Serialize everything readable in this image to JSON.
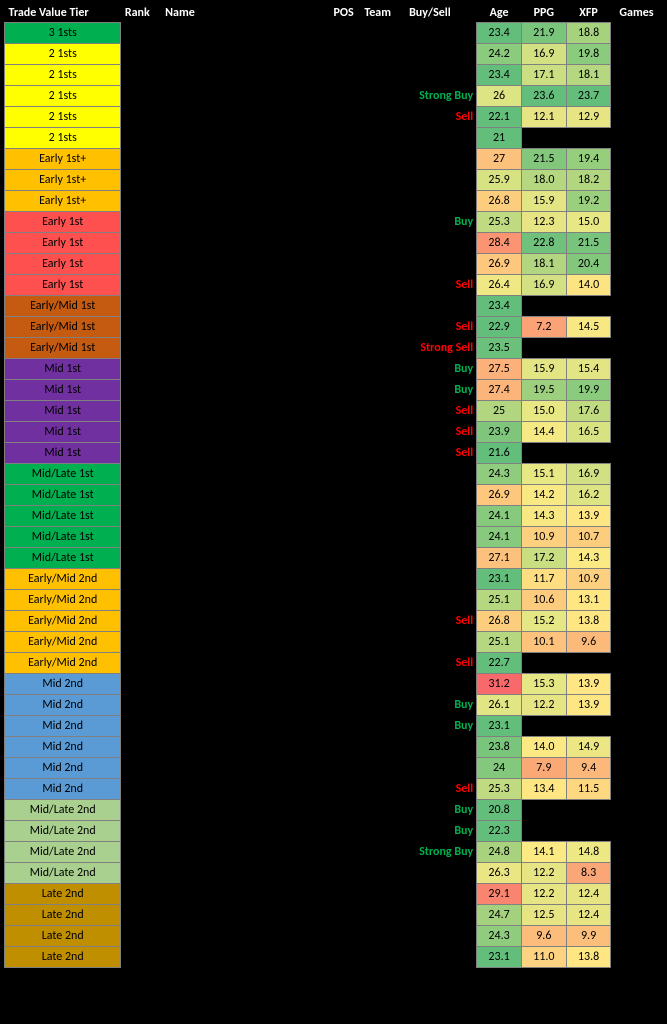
{
  "headers": {
    "tier": "Trade Value Tier",
    "rank": "Rank",
    "name": "Name",
    "pos": "POS",
    "team": "Team",
    "buysell": "Buy/Sell",
    "age": "Age",
    "ppg": "PPG",
    "xfp": "XFP",
    "games": "Games"
  },
  "buysell_colors": {
    "Strong Buy": "#00b050",
    "Buy": "#00b050",
    "Sell": "#ff0000",
    "Strong Sell": "#ff0000"
  },
  "rows": [
    {
      "tier": "3 1sts",
      "tier_bg": "#00b050",
      "buysell": "",
      "age": "23.4",
      "age_bg": "#63be7b",
      "ppg": "21.9",
      "ppg_bg": "#7ac57c",
      "xfp": "18.8",
      "xfp_bg": "#a6d27e"
    },
    {
      "tier": "2 1sts",
      "tier_bg": "#ffff00",
      "buysell": "",
      "age": "24.2",
      "age_bg": "#8bcb7d",
      "ppg": "16.9",
      "ppg_bg": "#d3e182",
      "xfp": "19.8",
      "xfp_bg": "#8bcb7d"
    },
    {
      "tier": "2 1sts",
      "tier_bg": "#ffff00",
      "buysell": "",
      "age": "23.4",
      "age_bg": "#63be7b",
      "ppg": "17.1",
      "ppg_bg": "#cbde81",
      "xfp": "18.1",
      "xfp_bg": "#b5d77f"
    },
    {
      "tier": "2 1sts",
      "tier_bg": "#ffff00",
      "buysell": "Strong Buy",
      "age": "26",
      "age_bg": "#dce483",
      "ppg": "23.6",
      "ppg_bg": "#63be7b",
      "xfp": "23.7",
      "xfp_bg": "#63be7b"
    },
    {
      "tier": "2 1sts",
      "tier_bg": "#ffff00",
      "buysell": "Sell",
      "age": "22.1",
      "age_bg": "#63be7b",
      "ppg": "12.1",
      "ppg_bg": "#e7e483",
      "xfp": "12.9",
      "xfp_bg": "#e7e483"
    },
    {
      "tier": "2 1sts",
      "tier_bg": "#ffff00",
      "buysell": "",
      "age": "21",
      "age_bg": "#63be7b",
      "ppg": "",
      "ppg_bg": "",
      "xfp": "",
      "xfp_bg": ""
    },
    {
      "tier": "Early 1st+",
      "tier_bg": "#ffc000",
      "buysell": "",
      "age": "27",
      "age_bg": "#fcc17c",
      "ppg": "21.5",
      "ppg_bg": "#82c77c",
      "xfp": "19.4",
      "xfp_bg": "#95ce7d"
    },
    {
      "tier": "Early 1st+",
      "tier_bg": "#ffc000",
      "buysell": "",
      "age": "25.9",
      "age_bg": "#d7e283",
      "ppg": "18.0",
      "ppg_bg": "#b5d77f",
      "xfp": "18.2",
      "xfp_bg": "#b2d67f"
    },
    {
      "tier": "Early 1st+",
      "tier_bg": "#ffc000",
      "buysell": "",
      "age": "26.8",
      "age_bg": "#fdcd7e",
      "ppg": "15.9",
      "ppg_bg": "#e3e584",
      "xfp": "19.2",
      "xfp_bg": "#9acf7d"
    },
    {
      "tier": "Early 1st",
      "tier_bg": "#ff5050",
      "buysell": "Buy",
      "age": "25.3",
      "age_bg": "#bfda80",
      "ppg": "12.3",
      "ppg_bg": "#e7e483",
      "xfp": "15.0",
      "xfp_bg": "#e7e784"
    },
    {
      "tier": "Early 1st",
      "tier_bg": "#ff5050",
      "buysell": "",
      "age": "28.4",
      "age_bg": "#fa9473",
      "ppg": "22.8",
      "ppg_bg": "#6fc17b",
      "xfp": "21.5",
      "xfp_bg": "#78c47c"
    },
    {
      "tier": "Early 1st",
      "tier_bg": "#ff5050",
      "buysell": "",
      "age": "26.9",
      "age_bg": "#fdc87d",
      "ppg": "18.1",
      "ppg_bg": "#b2d67f",
      "xfp": "20.4",
      "xfp_bg": "#82c77c"
    },
    {
      "tier": "Early 1st",
      "tier_bg": "#ff5050",
      "buysell": "Sell",
      "age": "26.4",
      "age_bg": "#f0e884",
      "ppg": "16.9",
      "ppg_bg": "#d3e182",
      "xfp": "14.0",
      "xfp_bg": "#fde483"
    },
    {
      "tier": "Early/Mid 1st",
      "tier_bg": "#c55a11",
      "buysell": "",
      "age": "23.4",
      "age_bg": "#63be7b",
      "ppg": "",
      "ppg_bg": "",
      "xfp": "",
      "xfp_bg": ""
    },
    {
      "tier": "Early/Mid 1st",
      "tier_bg": "#c55a11",
      "buysell": "Sell",
      "age": "22.9",
      "age_bg": "#63be7b",
      "ppg": "7.2",
      "ppg_bg": "#fba276",
      "xfp": "14.5",
      "xfp_bg": "#f7e884"
    },
    {
      "tier": "Early/Mid 1st",
      "tier_bg": "#c55a11",
      "buysell": "Strong Sell",
      "age": "23.5",
      "age_bg": "#6bc07b",
      "ppg": "",
      "ppg_bg": "",
      "xfp": "",
      "xfp_bg": ""
    },
    {
      "tier": "Mid 1st",
      "tier_bg": "#7030a0",
      "buysell": "Buy",
      "age": "27.5",
      "age_bg": "#fbb179",
      "ppg": "15.9",
      "ppg_bg": "#e3e584",
      "xfp": "15.4",
      "xfp_bg": "#e3e584"
    },
    {
      "tier": "Mid 1st",
      "tier_bg": "#7030a0",
      "buysell": "Buy",
      "age": "27.4",
      "age_bg": "#fbb479",
      "ppg": "19.5",
      "ppg_bg": "#9dd07e",
      "xfp": "19.9",
      "xfp_bg": "#8bcb7d"
    },
    {
      "tier": "Mid 1st",
      "tier_bg": "#7030a0",
      "buysell": "Sell",
      "age": "25",
      "age_bg": "#b2d67f",
      "ppg": "15.0",
      "ppg_bg": "#e7e784",
      "xfp": "17.6",
      "xfp_bg": "#c0da80"
    },
    {
      "tier": "Mid 1st",
      "tier_bg": "#7030a0",
      "buysell": "Sell",
      "age": "23.9",
      "age_bg": "#7fc67c",
      "ppg": "14.4",
      "ppg_bg": "#f5e984",
      "xfp": "16.5",
      "xfp_bg": "#d7e283"
    },
    {
      "tier": "Mid 1st",
      "tier_bg": "#7030a0",
      "buysell": "Sell",
      "age": "21.6",
      "age_bg": "#63be7b",
      "ppg": "",
      "ppg_bg": "",
      "xfp": "",
      "xfp_bg": ""
    },
    {
      "tier": "Mid/Late 1st",
      "tier_bg": "#00b050",
      "buysell": "",
      "age": "24.3",
      "age_bg": "#90cc7d",
      "ppg": "15.1",
      "ppg_bg": "#e7e784",
      "xfp": "16.9",
      "xfp_bg": "#d0e082"
    },
    {
      "tier": "Mid/Late 1st",
      "tier_bg": "#00b050",
      "buysell": "",
      "age": "26.9",
      "age_bg": "#fdc87d",
      "ppg": "14.2",
      "ppg_bg": "#f9e984",
      "xfp": "16.2",
      "xfp_bg": "#dce483"
    },
    {
      "tier": "Mid/Late 1st",
      "tier_bg": "#00b050",
      "buysell": "",
      "age": "24.1",
      "age_bg": "#87ca7d",
      "ppg": "14.3",
      "ppg_bg": "#f7e884",
      "xfp": "13.9",
      "xfp_bg": "#fde683"
    },
    {
      "tier": "Mid/Late 1st",
      "tier_bg": "#00b050",
      "buysell": "",
      "age": "24.1",
      "age_bg": "#87ca7d",
      "ppg": "10.9",
      "ppg_bg": "#fdd07f",
      "xfp": "10.7",
      "xfp_bg": "#fdcd7e"
    },
    {
      "tier": "Mid/Late 1st",
      "tier_bg": "#00b050",
      "buysell": "",
      "age": "27.1",
      "age_bg": "#fcc17c",
      "ppg": "17.2",
      "ppg_bg": "#c8de81",
      "xfp": "14.3",
      "xfp_bg": "#fbe984"
    },
    {
      "tier": "Early/Mid 2nd",
      "tier_bg": "#ffc000",
      "buysell": "",
      "age": "23.1",
      "age_bg": "#63be7b",
      "ppg": "11.7",
      "ppg_bg": "#fede81",
      "xfp": "10.9",
      "xfp_bg": "#fdd07f"
    },
    {
      "tier": "Early/Mid 2nd",
      "tier_bg": "#ffc000",
      "buysell": "",
      "age": "25.1",
      "age_bg": "#b5d77f",
      "ppg": "10.6",
      "ppg_bg": "#fdcb7e",
      "xfp": "13.1",
      "xfp_bg": "#fee783"
    },
    {
      "tier": "Early/Mid 2nd",
      "tier_bg": "#ffc000",
      "buysell": "Sell",
      "age": "26.8",
      "age_bg": "#fdcd7e",
      "ppg": "15.2",
      "ppg_bg": "#e5e684",
      "xfp": "13.8",
      "xfp_bg": "#fee683"
    },
    {
      "tier": "Early/Mid 2nd",
      "tier_bg": "#ffc000",
      "buysell": "",
      "age": "25.1",
      "age_bg": "#b5d77f",
      "ppg": "10.1",
      "ppg_bg": "#fdc37c",
      "xfp": "9.6",
      "xfp_bg": "#fcba7a"
    },
    {
      "tier": "Early/Mid 2nd",
      "tier_bg": "#ffc000",
      "buysell": "Sell",
      "age": "22.7",
      "age_bg": "#63be7b",
      "ppg": "",
      "ppg_bg": "",
      "xfp": "",
      "xfp_bg": ""
    },
    {
      "tier": "Mid 2nd",
      "tier_bg": "#5b9bd5",
      "buysell": "",
      "age": "31.2",
      "age_bg": "#f8696b",
      "ppg": "15.3",
      "ppg_bg": "#e5e684",
      "xfp": "13.9",
      "xfp_bg": "#fde683"
    },
    {
      "tier": "Mid 2nd",
      "tier_bg": "#5b9bd5",
      "buysell": "Buy",
      "age": "26.1",
      "age_bg": "#e1e584",
      "ppg": "12.2",
      "ppg_bg": "#e7e483",
      "xfp": "13.9",
      "xfp_bg": "#fde683"
    },
    {
      "tier": "Mid 2nd",
      "tier_bg": "#5b9bd5",
      "buysell": "Buy",
      "age": "23.1",
      "age_bg": "#63be7b",
      "ppg": "",
      "ppg_bg": "",
      "xfp": "",
      "xfp_bg": ""
    },
    {
      "tier": "Mid 2nd",
      "tier_bg": "#5b9bd5",
      "buysell": "",
      "age": "23.8",
      "age_bg": "#7ac57c",
      "ppg": "14.0",
      "ppg_bg": "#fde984",
      "xfp": "14.9",
      "xfp_bg": "#ece784"
    },
    {
      "tier": "Mid 2nd",
      "tier_bg": "#5b9bd5",
      "buysell": "",
      "age": "24",
      "age_bg": "#83c87c",
      "ppg": "7.9",
      "ppg_bg": "#fba877",
      "xfp": "9.4",
      "xfp_bg": "#fcb77a"
    },
    {
      "tier": "Mid 2nd",
      "tier_bg": "#5b9bd5",
      "buysell": "Sell",
      "age": "25.3",
      "age_bg": "#bfda80",
      "ppg": "13.4",
      "ppg_bg": "#fee783",
      "xfp": "11.5",
      "xfp_bg": "#fed881"
    },
    {
      "tier": "Mid/Late 2nd",
      "tier_bg": "#a9d08e",
      "buysell": "Buy",
      "age": "20.8",
      "age_bg": "#63be7b",
      "ppg": "",
      "ppg_bg": "",
      "xfp": "",
      "xfp_bg": ""
    },
    {
      "tier": "Mid/Late 2nd",
      "tier_bg": "#a9d08e",
      "buysell": "Buy",
      "age": "22.3",
      "age_bg": "#63be7b",
      "ppg": "",
      "ppg_bg": "",
      "xfp": "",
      "xfp_bg": ""
    },
    {
      "tier": "Mid/Late 2nd",
      "tier_bg": "#a9d08e",
      "buysell": "Strong Buy",
      "age": "24.8",
      "age_bg": "#a8d27e",
      "ppg": "14.1",
      "ppg_bg": "#fbe984",
      "xfp": "14.8",
      "xfp_bg": "#eee884"
    },
    {
      "tier": "Mid/Late 2nd",
      "tier_bg": "#a9d08e",
      "buysell": "",
      "age": "26.3",
      "age_bg": "#e9e683",
      "ppg": "12.2",
      "ppg_bg": "#e7e483",
      "xfp": "8.3",
      "xfp_bg": "#fba677"
    },
    {
      "tier": "Late 2nd",
      "tier_bg": "#bf8f00",
      "buysell": "",
      "age": "29.1",
      "age_bg": "#f98570",
      "ppg": "12.2",
      "ppg_bg": "#e7e483",
      "xfp": "12.4",
      "xfp_bg": "#e7e483"
    },
    {
      "tier": "Late 2nd",
      "tier_bg": "#bf8f00",
      "buysell": "",
      "age": "24.7",
      "age_bg": "#a3d17e",
      "ppg": "12.5",
      "ppg_bg": "#e7e483",
      "xfp": "12.4",
      "xfp_bg": "#e7e483"
    },
    {
      "tier": "Late 2nd",
      "tier_bg": "#bf8f00",
      "buysell": "",
      "age": "24.3",
      "age_bg": "#90cc7d",
      "ppg": "9.6",
      "ppg_bg": "#fcbc7b",
      "xfp": "9.9",
      "xfp_bg": "#fcbe7b"
    },
    {
      "tier": "Late 2nd",
      "tier_bg": "#bf8f00",
      "buysell": "",
      "age": "23.1",
      "age_bg": "#63be7b",
      "ppg": "11.0",
      "ppg_bg": "#fdd280",
      "xfp": "13.8",
      "xfp_bg": "#fee683"
    }
  ]
}
